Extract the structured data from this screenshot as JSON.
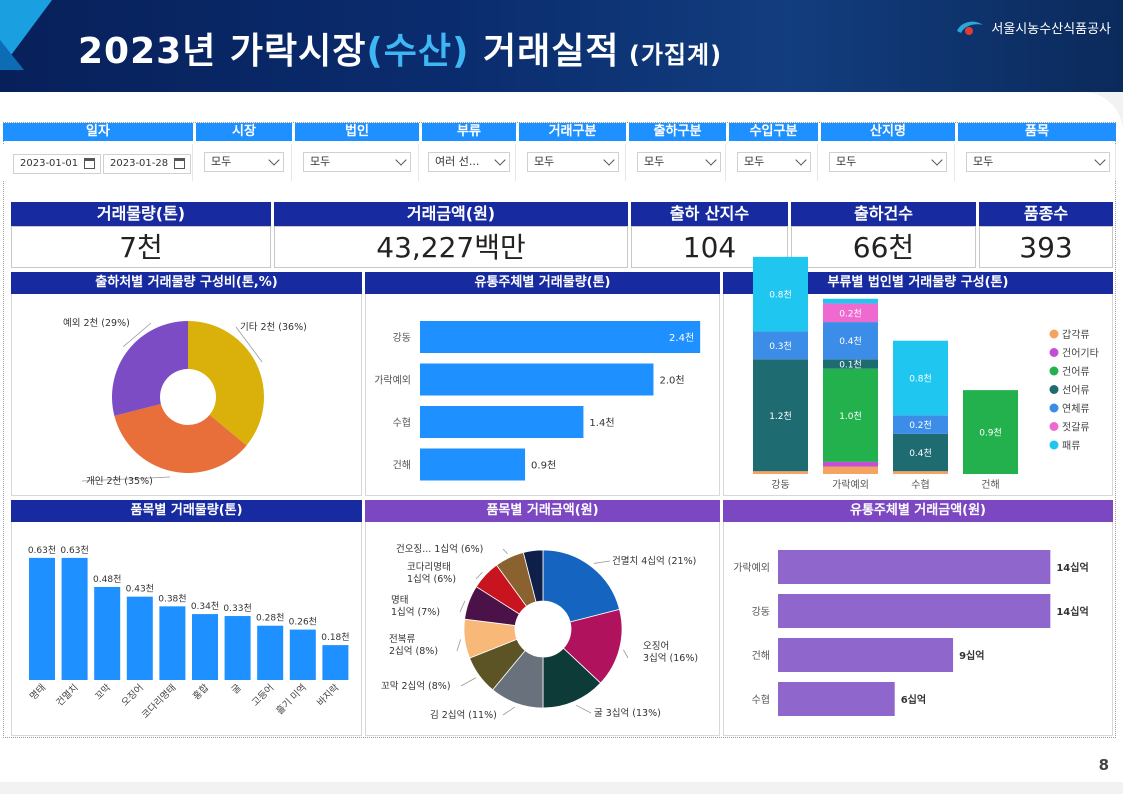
{
  "header": {
    "title_a": "2023년 가락시장",
    "title_b": "(수산)",
    "title_c": " 거래실적",
    "title_d": " (가집계)",
    "org": "서울시농수산식품공사"
  },
  "page_number": "8",
  "filters": {
    "date": {
      "label": "일자",
      "start": "2023-01-01",
      "end": "2023-01-28"
    },
    "market": {
      "label": "시장",
      "value": "모두"
    },
    "corp": {
      "label": "법인",
      "value": "모두"
    },
    "category": {
      "label": "부류",
      "value": "여러 선..."
    },
    "trade_type": {
      "label": "거래구분",
      "value": "모두"
    },
    "ship_type": {
      "label": "출하구분",
      "value": "모두"
    },
    "import_type": {
      "label": "수입구분",
      "value": "모두"
    },
    "origin": {
      "label": "산지명",
      "value": "모두"
    },
    "item": {
      "label": "품목",
      "value": "모두"
    }
  },
  "kpis": {
    "volume": {
      "label": "거래물량(톤)",
      "value": "7천"
    },
    "amount": {
      "label": "거래금액(원)",
      "value": "43,227백만"
    },
    "origins": {
      "label": "출하 산지수",
      "value": "104"
    },
    "shipments": {
      "label": "출하건수",
      "value": "66천"
    },
    "items": {
      "label": "품종수",
      "value": "393"
    }
  },
  "colors": {
    "header_blue": "#172aa0",
    "filter_blue": "#1e90ff",
    "bar_blue": "#1e90ff",
    "purple": "#7c48c2",
    "bar_purple": "#8f66cc"
  },
  "chart_data": [
    {
      "id": "ship_share",
      "type": "pie",
      "title": "출하처별 거래물량 구성비(톤,%)",
      "slices": [
        {
          "name": "기타",
          "value": 36,
          "label": "기타 2천 (36%)",
          "color": "#d9b10a"
        },
        {
          "name": "개인",
          "value": 35,
          "label": "개인 2천 (35%)",
          "color": "#e86e3a"
        },
        {
          "name": "예외",
          "value": 29,
          "label": "예외 2천 (29%)",
          "color": "#7b4cc4"
        }
      ]
    },
    {
      "id": "dist_volume",
      "type": "bar",
      "orientation": "horizontal",
      "title": "유통주체별 거래물량(톤)",
      "categories": [
        "강동",
        "가락예외",
        "수협",
        "건해"
      ],
      "values": [
        2.4,
        2.0,
        1.4,
        0.9
      ],
      "value_labels": [
        "2.4천",
        "2.0천",
        "1.4천",
        "0.9천"
      ],
      "xlim": [
        0,
        2.45
      ]
    },
    {
      "id": "cat_corp_volume",
      "type": "bar",
      "stacked": true,
      "title": "부류별 법인별 거래물량 구성(톤)",
      "categories": [
        "강동",
        "가락예외",
        "수협",
        "건해"
      ],
      "ylim": [
        0,
        2.4
      ],
      "series": [
        {
          "name": "갑각류",
          "color": "#f4a460",
          "values": [
            0.03,
            0.08,
            0.03,
            0
          ]
        },
        {
          "name": "건어기타",
          "color": "#c24fd6",
          "values": [
            0,
            0.05,
            0,
            0
          ]
        },
        {
          "name": "건어류",
          "color": "#22b14c",
          "values": [
            0,
            1.0,
            0,
            0.9
          ]
        },
        {
          "name": "선어류",
          "color": "#1f6b72",
          "values": [
            1.2,
            0.1,
            0.4,
            0
          ]
        },
        {
          "name": "연체류",
          "color": "#3b8de8",
          "values": [
            0.3,
            0.4,
            0.2,
            0
          ]
        },
        {
          "name": "젓갈류",
          "color": "#ee6ad0",
          "values": [
            0,
            0.2,
            0,
            0
          ]
        },
        {
          "name": "패류",
          "color": "#1ec6f0",
          "values": [
            0.8,
            0.05,
            0.8,
            0
          ]
        }
      ],
      "segment_labels": [
        {
          "cat": 0,
          "series": 3,
          "text": "1.2천"
        },
        {
          "cat": 0,
          "series": 4,
          "text": "0.3천"
        },
        {
          "cat": 0,
          "series": 6,
          "text": "0.8천"
        },
        {
          "cat": 1,
          "series": 5,
          "text": "0.2천"
        },
        {
          "cat": 1,
          "series": 2,
          "text": "1.0천"
        },
        {
          "cat": 1,
          "series": 3,
          "text": "0.1천"
        },
        {
          "cat": 1,
          "series": 4,
          "text": "0.4천"
        },
        {
          "cat": 2,
          "series": 3,
          "text": "0.4천"
        },
        {
          "cat": 2,
          "series": 4,
          "text": "0.2천"
        },
        {
          "cat": 2,
          "series": 6,
          "text": "0.8천"
        },
        {
          "cat": 3,
          "series": 2,
          "text": "0.9천"
        }
      ]
    },
    {
      "id": "item_volume",
      "type": "bar",
      "title": "품목별 거래물량(톤)",
      "categories": [
        "명태",
        "건멸치",
        "꼬막",
        "오징어",
        "코다리명태",
        "홍합",
        "굴",
        "고등어",
        "흘기 미역",
        "바지락"
      ],
      "values": [
        0.63,
        0.63,
        0.48,
        0.43,
        0.38,
        0.34,
        0.33,
        0.28,
        0.26,
        0.18
      ],
      "value_labels": [
        "0.63천",
        "0.63천",
        "0.48천",
        "0.43천",
        "0.38천",
        "0.34천",
        "0.33천",
        "0.28천",
        "0.26천",
        "0.18천"
      ],
      "ylim": [
        0,
        0.65
      ]
    },
    {
      "id": "item_amount",
      "type": "pie",
      "title": "품목별 거래금액(원)",
      "slices": [
        {
          "name": "건멸치",
          "value": 21,
          "label_lines": [
            "건멸치 4십억 (21%)"
          ],
          "color": "#1565c0"
        },
        {
          "name": "오징어",
          "value": 16,
          "label_lines": [
            "오징어",
            "3십억 (16%)"
          ],
          "color": "#b0125e"
        },
        {
          "name": "굴",
          "value": 13,
          "label_lines": [
            "굴 3십억 (13%)"
          ],
          "color": "#0d3b38"
        },
        {
          "name": "김",
          "value": 11,
          "label_lines": [
            "김 2십억 (11%)"
          ],
          "color": "#69727c"
        },
        {
          "name": "꼬막",
          "value": 8,
          "label_lines": [
            "꼬막 2십억 (8%)"
          ],
          "color": "#5c5424"
        },
        {
          "name": "전복류",
          "value": 8,
          "label_lines": [
            "전복류",
            "2십억 (8%)"
          ],
          "color": "#f8b878"
        },
        {
          "name": "명태",
          "value": 7,
          "label_lines": [
            "명태",
            "1십억 (7%)"
          ],
          "color": "#4a1248"
        },
        {
          "name": "코다리명태",
          "value": 6,
          "label_lines": [
            "코다리명태",
            "1십억 (6%)"
          ],
          "color": "#c8141e"
        },
        {
          "name": "건오징...",
          "value": 6,
          "label_lines": [
            "건오징... 1십억 (6%)"
          ],
          "color": "#8a6230"
        },
        {
          "name": "기타",
          "value": 4,
          "label_lines": [],
          "color": "#0e1f4a"
        }
      ]
    },
    {
      "id": "dist_amount",
      "type": "bar",
      "orientation": "horizontal",
      "title": "유통주체별 거래금액(원)",
      "categories": [
        "가락예외",
        "강동",
        "건해",
        "수협"
      ],
      "values": [
        14,
        14,
        9,
        6
      ],
      "value_labels": [
        "14십억",
        "14십억",
        "9십억",
        "6십억"
      ],
      "xlim": [
        0,
        14.6
      ]
    }
  ]
}
